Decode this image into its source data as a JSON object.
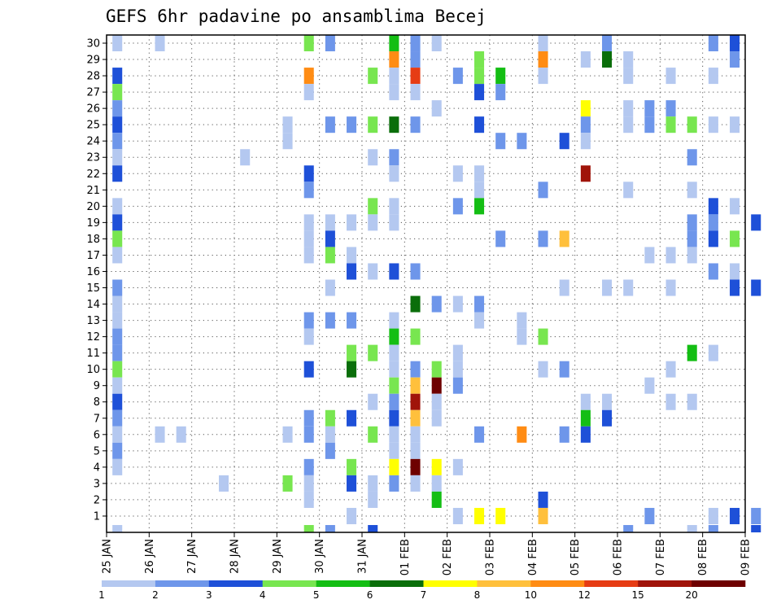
{
  "chart_data": {
    "type": "heatmap",
    "title": "GEFS 6hr padavine po ansamblima Becej",
    "xlabel": "",
    "ylabel": "",
    "x_tick_labels": [
      "25 JAN",
      "26 JAN",
      "27 JAN",
      "28 JAN",
      "29 JAN",
      "30 JAN",
      "31 JAN",
      "01 FEB",
      "02 FEB",
      "03 FEB",
      "04 FEB",
      "05 FEB",
      "06 FEB",
      "07 FEB",
      "08 FEB",
      "09 FEB"
    ],
    "y_tick_labels": [
      "1",
      "2",
      "3",
      "4",
      "5",
      "6",
      "7",
      "8",
      "9",
      "10",
      "11",
      "12",
      "13",
      "14",
      "15",
      "16",
      "17",
      "18",
      "19",
      "20",
      "21",
      "22",
      "23",
      "24",
      "25",
      "26",
      "27",
      "28",
      "29",
      "30"
    ],
    "grid": true,
    "colorbar": {
      "labels": [
        "1",
        "2",
        "3",
        "4",
        "5",
        "6",
        "7",
        "8",
        "10",
        "12",
        "15",
        "20"
      ],
      "colors": [
        "#b4c8f0",
        "#6e96ea",
        "#1e50d8",
        "#78e650",
        "#14be14",
        "#0a6e0a",
        "#ffff00",
        "#ffc03c",
        "#ff8c14",
        "#e63c14",
        "#a0140a",
        "#6e0000"
      ]
    },
    "x_range_steps": [
      0,
      60
    ],
    "cells": [
      [
        0,
        30,
        1
      ],
      [
        2,
        30,
        1
      ],
      [
        9,
        30,
        4
      ],
      [
        10,
        30,
        2
      ],
      [
        13,
        30,
        5
      ],
      [
        14,
        30,
        2
      ],
      [
        15,
        30,
        1
      ],
      [
        20,
        30,
        1
      ],
      [
        23,
        30,
        2
      ],
      [
        28,
        30,
        2
      ],
      [
        29,
        30,
        3
      ],
      [
        13,
        29,
        9
      ],
      [
        14,
        29,
        2
      ],
      [
        17,
        29,
        4
      ],
      [
        20,
        29,
        9
      ],
      [
        22,
        29,
        1
      ],
      [
        23,
        29,
        6
      ],
      [
        24,
        29,
        1
      ],
      [
        29,
        29,
        2
      ],
      [
        0,
        28,
        3
      ],
      [
        9,
        28,
        9
      ],
      [
        12,
        28,
        4
      ],
      [
        13,
        28,
        1
      ],
      [
        14,
        28,
        10
      ],
      [
        16,
        28,
        2
      ],
      [
        17,
        28,
        4
      ],
      [
        18,
        28,
        5
      ],
      [
        20,
        28,
        1
      ],
      [
        24,
        28,
        1
      ],
      [
        26,
        28,
        1
      ],
      [
        28,
        28,
        1
      ],
      [
        0,
        27,
        4
      ],
      [
        9,
        27,
        1
      ],
      [
        13,
        27,
        1
      ],
      [
        14,
        27,
        1
      ],
      [
        17,
        27,
        3
      ],
      [
        18,
        27,
        2
      ],
      [
        0,
        26,
        2
      ],
      [
        15,
        26,
        1
      ],
      [
        22,
        26,
        7
      ],
      [
        24,
        26,
        1
      ],
      [
        25,
        26,
        2
      ],
      [
        26,
        26,
        2
      ],
      [
        0,
        25,
        3
      ],
      [
        8,
        25,
        1
      ],
      [
        10,
        25,
        2
      ],
      [
        11,
        25,
        2
      ],
      [
        12,
        25,
        4
      ],
      [
        13,
        25,
        6
      ],
      [
        14,
        25,
        2
      ],
      [
        17,
        25,
        3
      ],
      [
        22,
        25,
        2
      ],
      [
        24,
        25,
        1
      ],
      [
        25,
        25,
        2
      ],
      [
        26,
        25,
        4
      ],
      [
        27,
        25,
        4
      ],
      [
        28,
        25,
        1
      ],
      [
        29,
        25,
        1
      ],
      [
        0,
        24,
        2
      ],
      [
        8,
        24,
        1
      ],
      [
        18,
        24,
        2
      ],
      [
        19,
        24,
        2
      ],
      [
        21,
        24,
        3
      ],
      [
        22,
        24,
        1
      ],
      [
        0,
        23,
        1
      ],
      [
        6,
        23,
        1
      ],
      [
        12,
        23,
        1
      ],
      [
        13,
        23,
        2
      ],
      [
        27,
        23,
        2
      ],
      [
        0,
        22,
        3
      ],
      [
        9,
        22,
        3
      ],
      [
        13,
        22,
        1
      ],
      [
        16,
        22,
        1
      ],
      [
        17,
        22,
        1
      ],
      [
        22,
        22,
        11
      ],
      [
        9,
        21,
        2
      ],
      [
        17,
        21,
        1
      ],
      [
        20,
        21,
        2
      ],
      [
        24,
        21,
        1
      ],
      [
        27,
        21,
        1
      ],
      [
        0,
        20,
        1
      ],
      [
        12,
        20,
        4
      ],
      [
        13,
        20,
        1
      ],
      [
        16,
        20,
        2
      ],
      [
        17,
        20,
        5
      ],
      [
        28,
        20,
        3
      ],
      [
        29,
        20,
        1
      ],
      [
        0,
        19,
        3
      ],
      [
        9,
        19,
        1
      ],
      [
        10,
        19,
        1
      ],
      [
        11,
        19,
        1
      ],
      [
        12,
        19,
        1
      ],
      [
        13,
        19,
        1
      ],
      [
        27,
        19,
        2
      ],
      [
        28,
        19,
        2
      ],
      [
        30,
        19,
        3
      ],
      [
        0,
        18,
        4
      ],
      [
        9,
        18,
        1
      ],
      [
        10,
        18,
        3
      ],
      [
        18,
        18,
        2
      ],
      [
        20,
        18,
        2
      ],
      [
        21,
        18,
        8
      ],
      [
        27,
        18,
        2
      ],
      [
        28,
        18,
        3
      ],
      [
        29,
        18,
        4
      ],
      [
        0,
        17,
        1
      ],
      [
        9,
        17,
        1
      ],
      [
        10,
        17,
        4
      ],
      [
        11,
        17,
        1
      ],
      [
        25,
        17,
        1
      ],
      [
        26,
        17,
        1
      ],
      [
        27,
        17,
        1
      ],
      [
        11,
        16,
        3
      ],
      [
        12,
        16,
        1
      ],
      [
        13,
        16,
        3
      ],
      [
        14,
        16,
        2
      ],
      [
        28,
        16,
        2
      ],
      [
        29,
        16,
        1
      ],
      [
        0,
        15,
        2
      ],
      [
        10,
        15,
        1
      ],
      [
        21,
        15,
        1
      ],
      [
        23,
        15,
        1
      ],
      [
        24,
        15,
        1
      ],
      [
        26,
        15,
        1
      ],
      [
        29,
        15,
        3
      ],
      [
        30,
        15,
        3
      ],
      [
        0,
        14,
        1
      ],
      [
        14,
        14,
        6
      ],
      [
        15,
        14,
        2
      ],
      [
        16,
        14,
        1
      ],
      [
        17,
        14,
        2
      ],
      [
        0,
        13,
        1
      ],
      [
        9,
        13,
        2
      ],
      [
        10,
        13,
        2
      ],
      [
        11,
        13,
        2
      ],
      [
        13,
        13,
        1
      ],
      [
        17,
        13,
        1
      ],
      [
        19,
        13,
        1
      ],
      [
        0,
        12,
        2
      ],
      [
        9,
        12,
        1
      ],
      [
        13,
        12,
        5
      ],
      [
        14,
        12,
        4
      ],
      [
        19,
        12,
        1
      ],
      [
        20,
        12,
        4
      ],
      [
        0,
        11,
        2
      ],
      [
        11,
        11,
        4
      ],
      [
        12,
        11,
        4
      ],
      [
        13,
        11,
        1
      ],
      [
        16,
        11,
        1
      ],
      [
        27,
        11,
        5
      ],
      [
        28,
        11,
        1
      ],
      [
        0,
        10,
        4
      ],
      [
        9,
        10,
        3
      ],
      [
        11,
        10,
        6
      ],
      [
        13,
        10,
        1
      ],
      [
        14,
        10,
        2
      ],
      [
        15,
        10,
        4
      ],
      [
        16,
        10,
        1
      ],
      [
        20,
        10,
        1
      ],
      [
        21,
        10,
        2
      ],
      [
        26,
        10,
        1
      ],
      [
        0,
        9,
        1
      ],
      [
        13,
        9,
        4
      ],
      [
        14,
        9,
        8
      ],
      [
        15,
        9,
        12
      ],
      [
        16,
        9,
        2
      ],
      [
        25,
        9,
        1
      ],
      [
        0,
        8,
        3
      ],
      [
        12,
        8,
        1
      ],
      [
        13,
        8,
        2
      ],
      [
        14,
        8,
        11
      ],
      [
        15,
        8,
        1
      ],
      [
        22,
        8,
        1
      ],
      [
        23,
        8,
        1
      ],
      [
        26,
        8,
        1
      ],
      [
        27,
        8,
        1
      ],
      [
        0,
        7,
        2
      ],
      [
        9,
        7,
        2
      ],
      [
        10,
        7,
        4
      ],
      [
        11,
        7,
        3
      ],
      [
        13,
        7,
        3
      ],
      [
        14,
        7,
        8
      ],
      [
        15,
        7,
        1
      ],
      [
        22,
        7,
        5
      ],
      [
        23,
        7,
        3
      ],
      [
        0,
        6,
        1
      ],
      [
        2,
        6,
        1
      ],
      [
        3,
        6,
        1
      ],
      [
        8,
        6,
        1
      ],
      [
        9,
        6,
        2
      ],
      [
        10,
        6,
        1
      ],
      [
        12,
        6,
        4
      ],
      [
        13,
        6,
        1
      ],
      [
        14,
        6,
        1
      ],
      [
        17,
        6,
        2
      ],
      [
        19,
        6,
        9
      ],
      [
        21,
        6,
        2
      ],
      [
        22,
        6,
        3
      ],
      [
        0,
        5,
        2
      ],
      [
        10,
        5,
        2
      ],
      [
        13,
        5,
        1
      ],
      [
        14,
        5,
        1
      ],
      [
        0,
        4,
        1
      ],
      [
        9,
        4,
        2
      ],
      [
        11,
        4,
        4
      ],
      [
        13,
        4,
        7
      ],
      [
        14,
        4,
        12
      ],
      [
        15,
        4,
        7
      ],
      [
        16,
        4,
        1
      ],
      [
        5,
        3,
        1
      ],
      [
        8,
        3,
        4
      ],
      [
        9,
        3,
        1
      ],
      [
        11,
        3,
        3
      ],
      [
        12,
        3,
        1
      ],
      [
        13,
        3,
        2
      ],
      [
        14,
        3,
        1
      ],
      [
        15,
        3,
        1
      ],
      [
        9,
        2,
        1
      ],
      [
        12,
        2,
        1
      ],
      [
        15,
        2,
        5
      ],
      [
        20,
        2,
        3
      ],
      [
        11,
        1,
        1
      ],
      [
        16,
        1,
        1
      ],
      [
        17,
        1,
        7
      ],
      [
        18,
        1,
        7
      ],
      [
        20,
        1,
        8
      ],
      [
        25,
        1,
        2
      ],
      [
        28,
        1,
        1
      ],
      [
        29,
        1,
        3
      ],
      [
        30,
        1,
        2
      ],
      [
        0,
        0,
        1
      ],
      [
        9,
        0,
        4
      ],
      [
        10,
        0,
        2
      ],
      [
        12,
        0,
        3
      ],
      [
        24,
        0,
        2
      ],
      [
        27,
        0,
        1
      ],
      [
        28,
        0,
        2
      ],
      [
        30,
        0,
        3
      ]
    ]
  }
}
